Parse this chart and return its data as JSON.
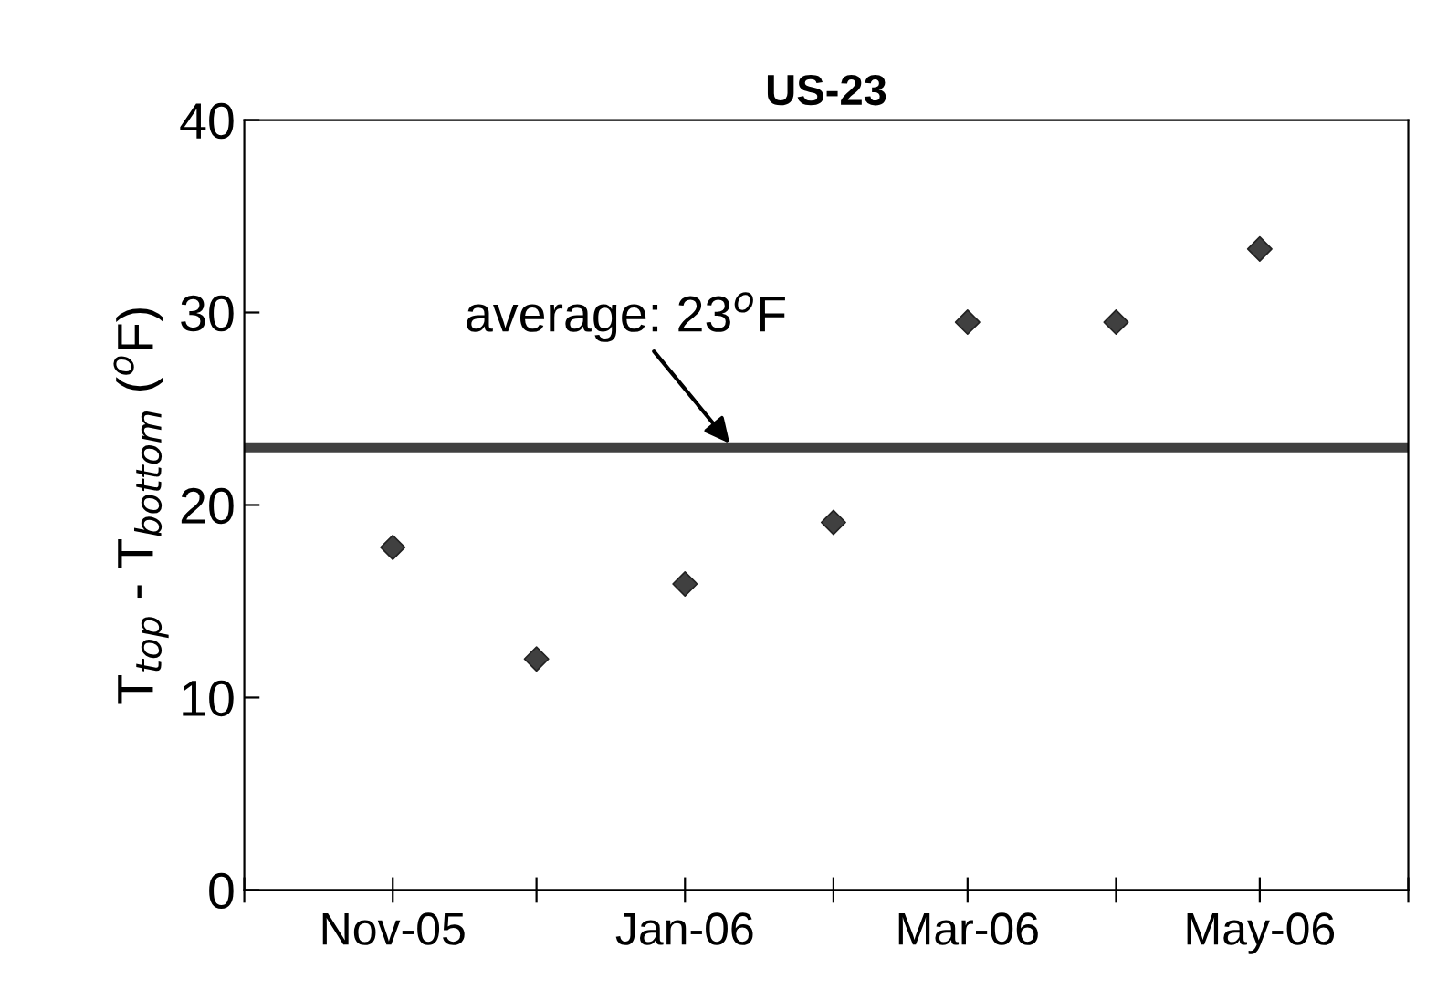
{
  "chart_data": {
    "type": "scatter",
    "title": "US-23",
    "ylabel": "T$_{top}$ - T$_{bottom}$ ($^{o}$F)",
    "x": [
      "2005-11",
      "2005-12",
      "2006-01",
      "2006-02",
      "2006-03",
      "2006-04",
      "2006-05"
    ],
    "series": [
      {
        "color": "#404040",
        "values": [
          17.8,
          12.0,
          15.9,
          19.1,
          29.5,
          29.5,
          33.3
        ]
      }
    ],
    "marker": "diamond",
    "xlim": [
      "2005-10",
      "2006-06"
    ],
    "xticks": [
      {
        "value": "2005-10",
        "label": null
      },
      {
        "value": "2005-11",
        "label": "Nov-05"
      },
      {
        "value": "2005-12",
        "label": null
      },
      {
        "value": "2006-01",
        "label": "Jan-06"
      },
      {
        "value": "2006-02",
        "label": null
      },
      {
        "value": "2006-03",
        "label": "Mar-06"
      },
      {
        "value": "2006-04",
        "label": null
      },
      {
        "value": "2006-05",
        "label": "May-06"
      },
      {
        "value": "2006-06",
        "label": null
      }
    ],
    "ylim": [
      0,
      40
    ],
    "yticks": [
      0,
      10,
      20,
      30,
      40
    ],
    "ref_lines": [
      {
        "axis": "y",
        "value": 23,
        "label": "average: 23$^{o}$F",
        "color": "#404040"
      }
    ],
    "grid": false,
    "legend": false
  }
}
